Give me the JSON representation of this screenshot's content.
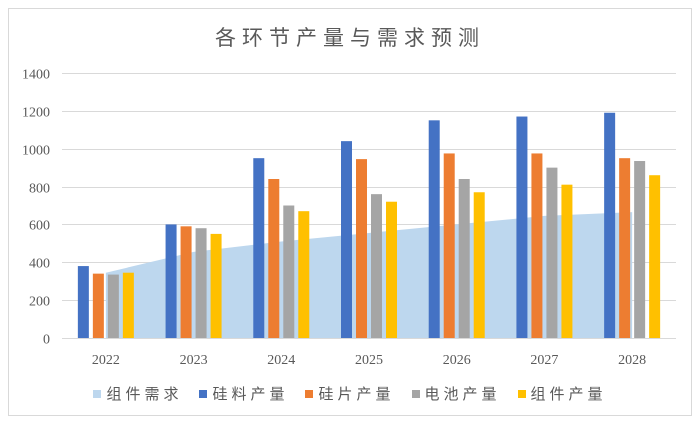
{
  "title": "各环节产量与需求预测",
  "colors": {
    "frame_border": "#d9d9d9",
    "gridline": "#d9d9d9",
    "axis_text": "#595959",
    "title_text": "#595959",
    "area_fill": "#bdd7ee",
    "bar_blue": "#4472c4",
    "bar_orange": "#ed7d31",
    "bar_gray": "#a5a5a5",
    "bar_yellow": "#ffc000"
  },
  "chart_data": {
    "type": "bar",
    "subtype": "combo-area-plus-grouped-bars",
    "title": "各环节产量与需求预测",
    "categories": [
      "2022",
      "2023",
      "2024",
      "2025",
      "2026",
      "2027",
      "2028"
    ],
    "series": [
      {
        "name": "组件需求",
        "type": "area",
        "color": "#bdd7ee",
        "values": [
          345,
          455,
          510,
          555,
          600,
          645,
          665
        ]
      },
      {
        "name": "硅料产量",
        "type": "bar",
        "color": "#4472c4",
        "values": [
          380,
          600,
          950,
          1040,
          1150,
          1170,
          1190
        ]
      },
      {
        "name": "硅片产量",
        "type": "bar",
        "color": "#ed7d31",
        "values": [
          340,
          590,
          840,
          945,
          975,
          975,
          950
        ]
      },
      {
        "name": "电池产量",
        "type": "bar",
        "color": "#a5a5a5",
        "values": [
          335,
          580,
          700,
          760,
          840,
          900,
          935
        ]
      },
      {
        "name": "组件产量",
        "type": "bar",
        "color": "#ffc000",
        "values": [
          345,
          550,
          670,
          720,
          770,
          810,
          860
        ]
      }
    ],
    "xlabel": "",
    "ylabel": "",
    "ylim": [
      0,
      1400
    ],
    "ytick_step": 200,
    "yticks": [
      "0",
      "200",
      "400",
      "600",
      "800",
      "1000",
      "1200",
      "1400"
    ],
    "grid": true,
    "legend_position": "bottom"
  }
}
